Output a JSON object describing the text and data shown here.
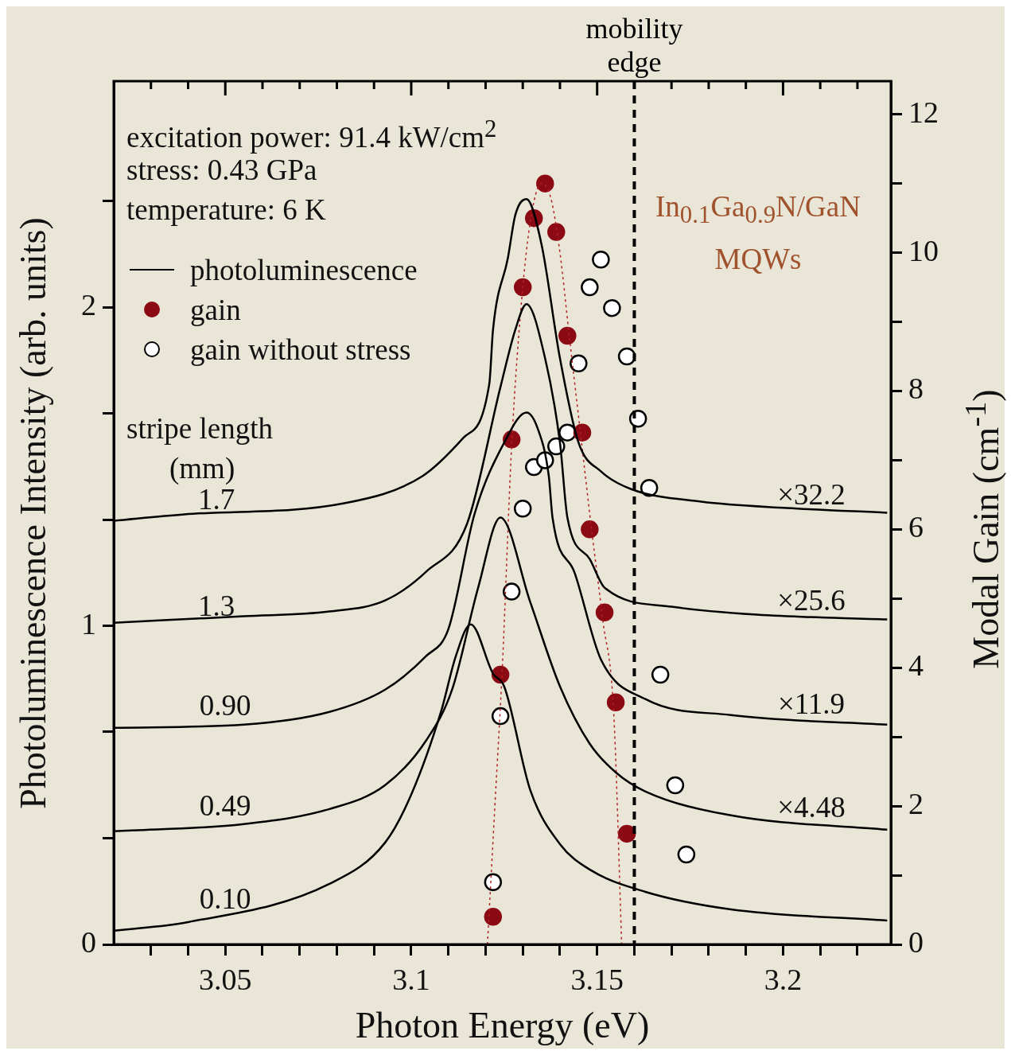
{
  "chart_data": {
    "type": "line",
    "xlabel": "Photon Energy (eV)",
    "ylabel": "Photoluminescence Intensity (arb. units)",
    "y2label": "Modal Gain (cm$^{-1}$)",
    "xlim": [
      3.02,
      3.229
    ],
    "xticks": [
      {
        "value": 3.03,
        "label": null
      },
      {
        "value": 3.04,
        "label": null
      },
      3.05,
      {
        "value": 3.06,
        "label": null
      },
      {
        "value": 3.07,
        "label": null
      },
      {
        "value": 3.08,
        "label": null
      },
      {
        "value": 3.09,
        "label": null
      },
      3.1,
      {
        "value": 3.11,
        "label": null
      },
      {
        "value": 3.12,
        "label": null
      },
      {
        "value": 3.13,
        "label": null
      },
      {
        "value": 3.14,
        "label": null
      },
      3.15,
      {
        "value": 3.16,
        "label": null
      },
      {
        "value": 3.17,
        "label": null
      },
      {
        "value": 3.18,
        "label": null
      },
      {
        "value": 3.19,
        "label": null
      },
      3.2,
      {
        "value": 3.21,
        "label": null
      },
      {
        "value": 3.22,
        "label": null
      }
    ],
    "ylim": [
      0,
      2.71
    ],
    "yticks": [
      0,
      {
        "value": 0.333,
        "label": null
      },
      {
        "value": 0.667,
        "label": null
      },
      1,
      {
        "value": 1.333,
        "label": null
      },
      {
        "value": 1.667,
        "label": null
      },
      2,
      {
        "value": 2.333,
        "label": null
      }
    ],
    "y2lim": [
      0,
      12.48
    ],
    "y2ticks": [
      0,
      {
        "value": 1,
        "label": null
      },
      2,
      {
        "value": 3,
        "label": null
      },
      4,
      {
        "value": 5,
        "label": null
      },
      6,
      {
        "value": 7,
        "label": null
      },
      8,
      {
        "value": 9,
        "label": null
      },
      10,
      {
        "value": 11,
        "label": null
      },
      12
    ],
    "legend": "top left",
    "marker": "none",
    "series": [
      {
        "name": "photoluminescence",
        "color": "#000000",
        "x": [
          3.02,
          3.039,
          3.082,
          3.103,
          3.114,
          3.121,
          3.122,
          3.126,
          3.128,
          3.131,
          3.135,
          3.14,
          3.145,
          3.151,
          3.159,
          3.178,
          3.201,
          3.228
        ],
        "values": [
          1.33,
          1.35,
          1.385,
          1.47,
          1.59,
          1.76,
          1.93,
          2.155,
          2.29,
          2.34,
          2.2,
          1.84,
          1.575,
          1.485,
          1.43,
          1.39,
          1.37,
          1.355
        ]
      },
      {
        "color": "#000000",
        "x": [
          3.02,
          3.055,
          3.078,
          3.093,
          3.104,
          3.115,
          3.124,
          3.128,
          3.131,
          3.136,
          3.14,
          3.142,
          3.148,
          3.152,
          3.17,
          3.193,
          3.228
        ],
        "values": [
          1.01,
          1.03,
          1.045,
          1.08,
          1.17,
          1.32,
          1.75,
          1.93,
          2.01,
          1.84,
          1.575,
          1.34,
          1.21,
          1.12,
          1.06,
          1.035,
          1.02
        ]
      },
      {
        "color": "#000000",
        "x": [
          3.02,
          3.055,
          3.078,
          3.093,
          3.104,
          3.11,
          3.117,
          3.125,
          3.131,
          3.134,
          3.137,
          3.138,
          3.144,
          3.151,
          3.163,
          3.186,
          3.228
        ],
        "values": [
          0.68,
          0.69,
          0.73,
          0.8,
          0.905,
          0.99,
          1.35,
          1.575,
          1.67,
          1.62,
          1.47,
          1.34,
          1.165,
          0.895,
          0.77,
          0.72,
          0.69
        ]
      },
      {
        "color": "#000000",
        "x": [
          3.02,
          3.055,
          3.078,
          3.093,
          3.104,
          3.111,
          3.118,
          3.124,
          3.132,
          3.14,
          3.148,
          3.155,
          3.163,
          3.186,
          3.228
        ],
        "values": [
          0.355,
          0.378,
          0.425,
          0.5,
          0.64,
          0.8,
          1.12,
          1.34,
          1.075,
          0.81,
          0.63,
          0.54,
          0.48,
          0.405,
          0.36
        ]
      },
      {
        "color": "#000000",
        "x": [
          3.02,
          3.04,
          3.078,
          3.093,
          3.1,
          3.108,
          3.112,
          3.116,
          3.122,
          3.125,
          3.132,
          3.14,
          3.148,
          3.163,
          3.186,
          3.228
        ],
        "values": [
          0.043,
          0.07,
          0.19,
          0.32,
          0.47,
          0.73,
          0.905,
          1.005,
          0.85,
          0.81,
          0.485,
          0.315,
          0.235,
          0.165,
          0.11,
          0.075
        ]
      },
      {
        "type": "line",
        "color": "#b22222",
        "line_style": "dotted",
        "axis": "y2",
        "x": [
          3.1205,
          3.1225,
          3.1245,
          3.127,
          3.13,
          3.1325,
          3.135,
          3.1375,
          3.14,
          3.1425,
          3.1455,
          3.1485,
          3.1515,
          3.1545,
          3.1566
        ],
        "values": [
          0,
          2,
          4,
          7.2,
          9.5,
          10.6,
          11.0,
          10.8,
          10.0,
          8.8,
          7.4,
          6.0,
          4.7,
          3.3,
          0
        ]
      },
      {
        "name": "gain",
        "type": "scatter",
        "marker": "circle",
        "color": "#8b0a14",
        "axis": "y2",
        "x": [
          3.122,
          3.124,
          3.127,
          3.13,
          3.133,
          3.136,
          3.139,
          3.142,
          3.146,
          3.148,
          3.152,
          3.155,
          3.158
        ],
        "values": [
          0.4,
          3.9,
          7.3,
          9.5,
          10.5,
          11.0,
          10.3,
          8.8,
          7.4,
          6.0,
          4.8,
          3.5,
          1.6
        ]
      },
      {
        "name": "gain without stress",
        "type": "scatter",
        "marker": "circle",
        "color": "#000000",
        "axis": "y2",
        "x": [
          3.122,
          3.124,
          3.127,
          3.13,
          3.133,
          3.136,
          3.139,
          3.142,
          3.145,
          3.148,
          3.151,
          3.154,
          3.158,
          3.161,
          3.164,
          3.167,
          3.171,
          3.174
        ],
        "values": [
          0.9,
          3.3,
          5.1,
          6.3,
          6.9,
          7.0,
          7.2,
          7.4,
          8.4,
          9.5,
          9.9,
          9.2,
          8.5,
          7.6,
          6.6,
          3.9,
          2.3,
          1.3
        ]
      }
    ],
    "ref_lines": [
      {
        "axis": "x",
        "value": 3.16,
        "label": "mobility edge",
        "color": "#000000",
        "line_style": "dashed"
      }
    ],
    "annotations": [
      "excitation power: 91.4 kW/cm$^{2}$",
      "stress: 0.43 GPa",
      "temperature: 6 K",
      "stripe length",
      "(mm)",
      "In$_{0.1}$Ga$_{0.9}$N/GaN MQWs",
      "1.7",
      "1.3",
      "0.90",
      "0.49",
      "0.10",
      "×32.2",
      "×25.6",
      "×11.9",
      "×4.48"
    ]
  }
}
